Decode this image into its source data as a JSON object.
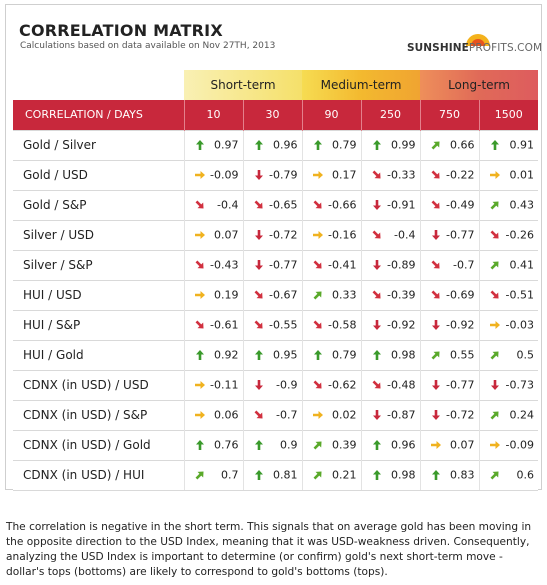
{
  "header": {
    "title": "CORRELATION MATRIX",
    "subtitle": "Calculations based on data available on Nov 27TH, 2013",
    "logo_bold": "SUNSHINE",
    "logo_light": "PROFITS.COM"
  },
  "bands": {
    "short": "Short-term",
    "medium": "Medium-term",
    "long": "Long-term"
  },
  "table": {
    "header_label": "CORRELATION / DAYS",
    "columns": [
      "10",
      "30",
      "90",
      "250",
      "750",
      "1500"
    ],
    "rows": [
      {
        "name": "Gold / Silver",
        "cells": [
          {
            "v": "0.97",
            "d": "up"
          },
          {
            "v": "0.96",
            "d": "up"
          },
          {
            "v": "0.79",
            "d": "up"
          },
          {
            "v": "0.99",
            "d": "up"
          },
          {
            "v": "0.66",
            "d": "up-right"
          },
          {
            "v": "0.91",
            "d": "up"
          }
        ]
      },
      {
        "name": "Gold / USD",
        "cells": [
          {
            "v": "-0.09",
            "d": "right"
          },
          {
            "v": "-0.79",
            "d": "down"
          },
          {
            "v": "0.17",
            "d": "right"
          },
          {
            "v": "-0.33",
            "d": "down-right"
          },
          {
            "v": "-0.22",
            "d": "down-right"
          },
          {
            "v": "0.01",
            "d": "right"
          }
        ]
      },
      {
        "name": "Gold / S&P",
        "cells": [
          {
            "v": "-0.4",
            "d": "down-right"
          },
          {
            "v": "-0.65",
            "d": "down-right"
          },
          {
            "v": "-0.66",
            "d": "down-right"
          },
          {
            "v": "-0.91",
            "d": "down"
          },
          {
            "v": "-0.49",
            "d": "down-right"
          },
          {
            "v": "0.43",
            "d": "up-right"
          }
        ]
      },
      {
        "name": "Silver / USD",
        "cells": [
          {
            "v": "0.07",
            "d": "right"
          },
          {
            "v": "-0.72",
            "d": "down"
          },
          {
            "v": "-0.16",
            "d": "right"
          },
          {
            "v": "-0.4",
            "d": "down-right"
          },
          {
            "v": "-0.77",
            "d": "down"
          },
          {
            "v": "-0.26",
            "d": "down-right"
          }
        ]
      },
      {
        "name": "Silver / S&P",
        "cells": [
          {
            "v": "-0.43",
            "d": "down-right"
          },
          {
            "v": "-0.77",
            "d": "down"
          },
          {
            "v": "-0.41",
            "d": "down-right"
          },
          {
            "v": "-0.89",
            "d": "down"
          },
          {
            "v": "-0.7",
            "d": "down-right"
          },
          {
            "v": "0.41",
            "d": "up-right"
          }
        ]
      },
      {
        "name": "HUI / USD",
        "cells": [
          {
            "v": "0.19",
            "d": "right"
          },
          {
            "v": "-0.67",
            "d": "down-right"
          },
          {
            "v": "0.33",
            "d": "up-right"
          },
          {
            "v": "-0.39",
            "d": "down-right"
          },
          {
            "v": "-0.69",
            "d": "down-right"
          },
          {
            "v": "-0.51",
            "d": "down-right"
          }
        ]
      },
      {
        "name": "HUI / S&P",
        "cells": [
          {
            "v": "-0.61",
            "d": "down-right"
          },
          {
            "v": "-0.55",
            "d": "down-right"
          },
          {
            "v": "-0.58",
            "d": "down-right"
          },
          {
            "v": "-0.92",
            "d": "down"
          },
          {
            "v": "-0.92",
            "d": "down"
          },
          {
            "v": "-0.03",
            "d": "right"
          }
        ]
      },
      {
        "name": "HUI / Gold",
        "cells": [
          {
            "v": "0.92",
            "d": "up"
          },
          {
            "v": "0.95",
            "d": "up"
          },
          {
            "v": "0.79",
            "d": "up"
          },
          {
            "v": "0.98",
            "d": "up"
          },
          {
            "v": "0.55",
            "d": "up-right"
          },
          {
            "v": "0.5",
            "d": "up-right"
          }
        ]
      },
      {
        "name": "CDNX (in USD) / USD",
        "cells": [
          {
            "v": "-0.11",
            "d": "right"
          },
          {
            "v": "-0.9",
            "d": "down"
          },
          {
            "v": "-0.62",
            "d": "down-right"
          },
          {
            "v": "-0.48",
            "d": "down-right"
          },
          {
            "v": "-0.77",
            "d": "down"
          },
          {
            "v": "-0.73",
            "d": "down"
          }
        ]
      },
      {
        "name": "CDNX (in USD) / S&P",
        "cells": [
          {
            "v": "0.06",
            "d": "right"
          },
          {
            "v": "-0.7",
            "d": "down-right"
          },
          {
            "v": "0.02",
            "d": "right"
          },
          {
            "v": "-0.87",
            "d": "down"
          },
          {
            "v": "-0.72",
            "d": "down"
          },
          {
            "v": "0.24",
            "d": "up-right"
          }
        ]
      },
      {
        "name": "CDNX (in USD) / Gold",
        "cells": [
          {
            "v": "0.76",
            "d": "up"
          },
          {
            "v": "0.9",
            "d": "up"
          },
          {
            "v": "0.39",
            "d": "up-right"
          },
          {
            "v": "0.96",
            "d": "up"
          },
          {
            "v": "0.07",
            "d": "right"
          },
          {
            "v": "-0.09",
            "d": "right"
          }
        ]
      },
      {
        "name": "CDNX (in USD) / HUI",
        "cells": [
          {
            "v": "0.7",
            "d": "up-right"
          },
          {
            "v": "0.81",
            "d": "up"
          },
          {
            "v": "0.21",
            "d": "up-right"
          },
          {
            "v": "0.98",
            "d": "up"
          },
          {
            "v": "0.83",
            "d": "up"
          },
          {
            "v": "0.6",
            "d": "up-right"
          }
        ]
      }
    ]
  },
  "arrow_colors": {
    "up": "#3a9a2b",
    "up-right": "#5aa92a",
    "right": "#f0b21f",
    "down-right": "#d1303f",
    "down": "#c8283c"
  },
  "note": "The correlation is negative in the short term. This signals that on average gold has been moving in the opposite direction to the USD Index, meaning that it was USD-weakness driven. Consequently, analyzing the USD Index is important to determine (or confirm) gold's next short-term move - dollar's tops (bottoms) are likely to correspond to gold's bottoms (tops)."
}
